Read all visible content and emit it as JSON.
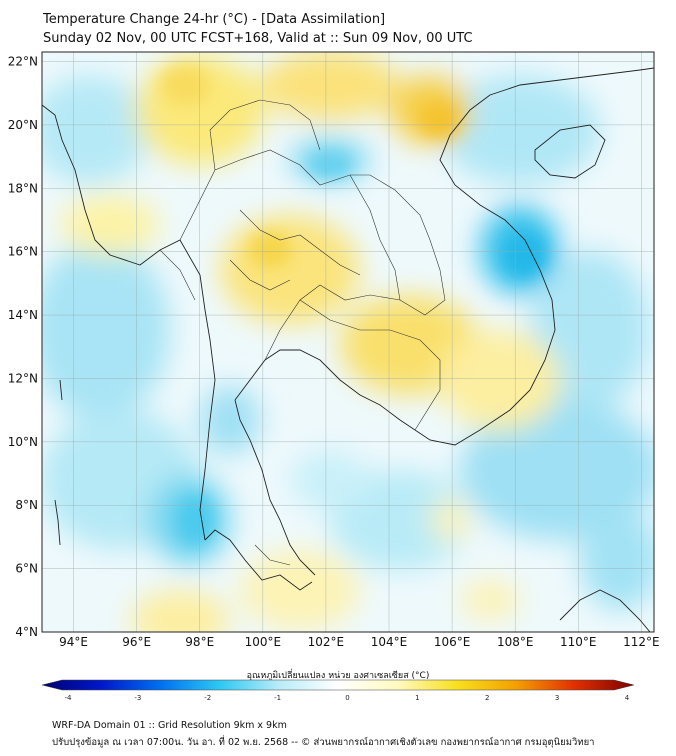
{
  "header": {
    "title_line1": "Temperature Change 24-hr (°C) - [Data Assimilation]",
    "title_line2": "Sunday 02 Nov, 00 UTC FCST+168, Valid at :: Sun 09 Nov, 00 UTC"
  },
  "map": {
    "lat_labels": [
      "22°N",
      "20°N",
      "18°N",
      "16°N",
      "14°N",
      "12°N",
      "10°N",
      "8°N",
      "6°N",
      "4°N"
    ],
    "lon_labels": [
      "94°E",
      "96°E",
      "98°E",
      "100°E",
      "102°E",
      "104°E",
      "106°E",
      "108°E",
      "110°E",
      "112°E"
    ],
    "lat_range": [
      4,
      22.3
    ],
    "lon_range": [
      93,
      112.4
    ]
  },
  "colorbar": {
    "title": "อุณหภูมิเปลี่ยนแปลง หน่วย องศาเซลเซียส (°C)",
    "ticks": [
      "-4",
      "-3",
      "-2",
      "-1",
      "0",
      "1",
      "2",
      "3",
      "4"
    ],
    "range": [
      -4,
      4
    ],
    "colors": [
      "#000070",
      "#0018c8",
      "#0070f0",
      "#2ec8f2",
      "#b8ecf8",
      "#ffffff",
      "#fffac0",
      "#f8e020",
      "#f4a000",
      "#e03000",
      "#7a0000"
    ]
  },
  "footer": {
    "line1": "WRF-DA Domain 01 :: Grid Resolution 9km x 9km",
    "line2": "ปรับปรุงข้อมูล ณ เวลา 07:00น. วัน อา. ที่ 02 พ.ย. 2568 -- © ส่วนพยากรณ์อากาศเชิงตัวเลข กองพยากรณ์อากาศ กรมอุตุนิยมวิทยา"
  }
}
